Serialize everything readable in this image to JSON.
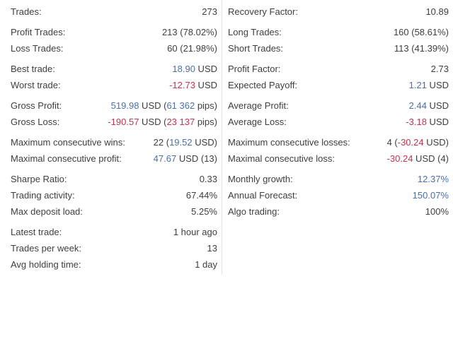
{
  "colors": {
    "text": "#3e3e3e",
    "positive_blue": "#4a70a8",
    "negative_red": "#c43350",
    "divider": "#e0e0e0",
    "background": "#ffffff"
  },
  "columns": [
    {
      "id": "left",
      "groups": [
        [
          {
            "label": "Trades:",
            "value": [
              {
                "t": "273",
                "c": "default"
              }
            ]
          }
        ],
        [
          {
            "label": "Profit Trades:",
            "value": [
              {
                "t": "213 (78.02%)",
                "c": "default"
              }
            ]
          },
          {
            "label": "Loss Trades:",
            "value": [
              {
                "t": "60 (21.98%)",
                "c": "default"
              }
            ]
          }
        ],
        [
          {
            "label": "Best trade:",
            "value": [
              {
                "t": "18.90",
                "c": "blue"
              },
              {
                "t": " USD",
                "c": "default"
              }
            ]
          },
          {
            "label": "Worst trade:",
            "value": [
              {
                "t": "-12.73",
                "c": "red"
              },
              {
                "t": " USD",
                "c": "default"
              }
            ]
          }
        ],
        [
          {
            "label": "Gross Profit:",
            "value": [
              {
                "t": "519.98",
                "c": "blue"
              },
              {
                "t": " USD (",
                "c": "default"
              },
              {
                "t": "61 362",
                "c": "blue"
              },
              {
                "t": " pips)",
                "c": "default"
              }
            ]
          },
          {
            "label": "Gross Loss:",
            "value": [
              {
                "t": "-190.57",
                "c": "red"
              },
              {
                "t": " USD (",
                "c": "default"
              },
              {
                "t": "23 137",
                "c": "red"
              },
              {
                "t": " pips)",
                "c": "default"
              }
            ]
          }
        ],
        [
          {
            "label": "Maximum consecutive wins:",
            "value": [
              {
                "t": "22 (",
                "c": "default"
              },
              {
                "t": "19.52",
                "c": "blue"
              },
              {
                "t": " USD)",
                "c": "default"
              }
            ]
          },
          {
            "label": "Maximal consecutive profit:",
            "value": [
              {
                "t": "47.67",
                "c": "blue"
              },
              {
                "t": " USD (13)",
                "c": "default"
              }
            ]
          }
        ],
        [
          {
            "label": "Sharpe Ratio:",
            "value": [
              {
                "t": "0.33",
                "c": "default"
              }
            ]
          },
          {
            "label": "Trading activity:",
            "value": [
              {
                "t": "67.44%",
                "c": "default"
              }
            ]
          },
          {
            "label": "Max deposit load:",
            "value": [
              {
                "t": "5.25%",
                "c": "default"
              }
            ]
          }
        ],
        [
          {
            "label": "Latest trade:",
            "value": [
              {
                "t": "1 hour ago",
                "c": "default"
              }
            ]
          },
          {
            "label": "Trades per week:",
            "value": [
              {
                "t": "13",
                "c": "default"
              }
            ]
          },
          {
            "label": "Avg holding time:",
            "value": [
              {
                "t": "1 day",
                "c": "default"
              }
            ]
          }
        ]
      ]
    },
    {
      "id": "right",
      "groups": [
        [
          {
            "label": "Recovery Factor:",
            "value": [
              {
                "t": "10.89",
                "c": "default"
              }
            ]
          }
        ],
        [
          {
            "label": "Long Trades:",
            "value": [
              {
                "t": "160 (58.61%)",
                "c": "default"
              }
            ]
          },
          {
            "label": "Short Trades:",
            "value": [
              {
                "t": "113 (41.39%)",
                "c": "default"
              }
            ]
          }
        ],
        [
          {
            "label": "Profit Factor:",
            "value": [
              {
                "t": "2.73",
                "c": "default"
              }
            ]
          },
          {
            "label": "Expected Payoff:",
            "value": [
              {
                "t": "1.21",
                "c": "blue"
              },
              {
                "t": " USD",
                "c": "default"
              }
            ]
          }
        ],
        [
          {
            "label": "Average Profit:",
            "value": [
              {
                "t": "2.44",
                "c": "blue"
              },
              {
                "t": " USD",
                "c": "default"
              }
            ]
          },
          {
            "label": "Average Loss:",
            "value": [
              {
                "t": "-3.18",
                "c": "red"
              },
              {
                "t": " USD",
                "c": "default"
              }
            ]
          }
        ],
        [
          {
            "label": "Maximum consecutive losses:",
            "value": [
              {
                "t": "4 (",
                "c": "default"
              },
              {
                "t": "-30.24",
                "c": "red"
              },
              {
                "t": " USD)",
                "c": "default"
              }
            ]
          },
          {
            "label": "Maximal consecutive loss:",
            "value": [
              {
                "t": "-30.24",
                "c": "red"
              },
              {
                "t": " USD (4)",
                "c": "default"
              }
            ]
          }
        ],
        [
          {
            "label": "Monthly growth:",
            "value": [
              {
                "t": "12.37%",
                "c": "blue"
              }
            ]
          },
          {
            "label": "Annual Forecast:",
            "value": [
              {
                "t": "150.07%",
                "c": "blue"
              }
            ]
          },
          {
            "label": "Algo trading:",
            "value": [
              {
                "t": "100%",
                "c": "default"
              }
            ]
          }
        ]
      ]
    }
  ]
}
